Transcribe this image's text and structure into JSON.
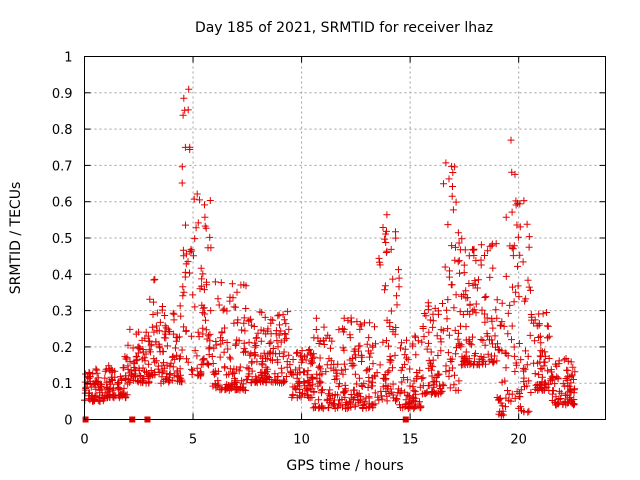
{
  "chart_data": {
    "type": "scatter",
    "title": "Day 185 of 2021, SRMTID for receiver lhaz",
    "xlabel": "GPS time / hours",
    "ylabel": "SRMTID / TECUs",
    "xlim": [
      0,
      24
    ],
    "ylim": [
      0,
      1
    ],
    "xticks": [
      0,
      5,
      10,
      15,
      20
    ],
    "yticks": [
      0,
      0.1,
      0.2,
      0.3,
      0.4,
      0.5,
      0.6,
      0.7,
      0.8,
      0.9,
      1
    ],
    "xtick_labels": [
      "0",
      "5",
      "10",
      "15",
      "20"
    ],
    "ytick_labels": [
      "0",
      "0.1",
      "0.2",
      "0.3",
      "0.4",
      "0.5",
      "0.6",
      "0.7",
      "0.8",
      "0.9",
      "1"
    ],
    "grid": true,
    "marker": "plus",
    "color": "#e00000",
    "zero_markers": [
      0.05,
      2.2,
      2.9,
      14.8
    ],
    "envelope": [
      {
        "start": 0.0,
        "end": 1.0,
        "low": 0.05,
        "high": 0.14
      },
      {
        "start": 1.0,
        "end": 2.0,
        "low": 0.06,
        "high": 0.18
      },
      {
        "start": 2.0,
        "end": 3.0,
        "low": 0.1,
        "high": 0.26
      },
      {
        "start": 3.0,
        "end": 3.5,
        "low": 0.12,
        "high": 0.39
      },
      {
        "start": 3.5,
        "end": 4.5,
        "low": 0.1,
        "high": 0.32
      },
      {
        "start": 4.5,
        "end": 4.9,
        "low": 0.15,
        "high": 0.93
      },
      {
        "start": 4.9,
        "end": 5.5,
        "low": 0.12,
        "high": 0.63
      },
      {
        "start": 5.5,
        "end": 5.9,
        "low": 0.15,
        "high": 0.64
      },
      {
        "start": 5.9,
        "end": 7.5,
        "low": 0.08,
        "high": 0.38
      },
      {
        "start": 7.5,
        "end": 9.5,
        "low": 0.1,
        "high": 0.3
      },
      {
        "start": 9.5,
        "end": 10.5,
        "low": 0.06,
        "high": 0.2
      },
      {
        "start": 10.5,
        "end": 13.5,
        "low": 0.03,
        "high": 0.28
      },
      {
        "start": 13.5,
        "end": 14.5,
        "low": 0.05,
        "high": 0.57
      },
      {
        "start": 14.5,
        "end": 15.5,
        "low": 0.03,
        "high": 0.24
      },
      {
        "start": 15.5,
        "end": 16.5,
        "low": 0.07,
        "high": 0.33
      },
      {
        "start": 16.5,
        "end": 17.3,
        "low": 0.08,
        "high": 0.72
      },
      {
        "start": 17.3,
        "end": 19.0,
        "low": 0.15,
        "high": 0.5
      },
      {
        "start": 19.0,
        "end": 19.4,
        "low": 0.01,
        "high": 0.35
      },
      {
        "start": 19.4,
        "end": 20.0,
        "low": 0.05,
        "high": 0.8
      },
      {
        "start": 20.0,
        "end": 20.6,
        "low": 0.02,
        "high": 0.63
      },
      {
        "start": 20.6,
        "end": 21.5,
        "low": 0.08,
        "high": 0.3
      },
      {
        "start": 21.5,
        "end": 22.6,
        "low": 0.04,
        "high": 0.18
      }
    ]
  }
}
